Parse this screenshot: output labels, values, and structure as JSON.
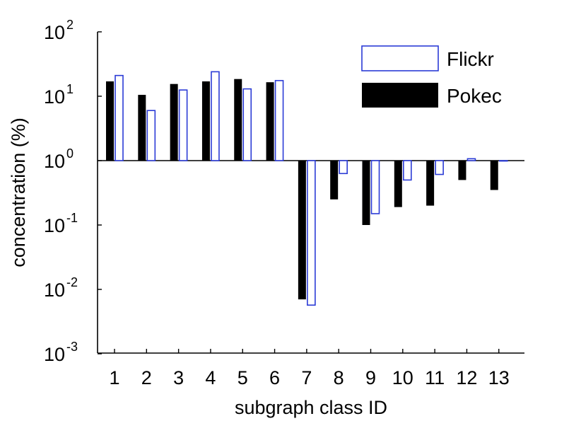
{
  "chart_data": {
    "type": "bar",
    "xlabel": "subgraph class ID",
    "ylabel": "concentration (%)",
    "y_scale": "log",
    "ylim": [
      0.001,
      100
    ],
    "baseline": 1,
    "grid": false,
    "legend_position": "top-right",
    "categories": [
      "1",
      "2",
      "3",
      "4",
      "5",
      "6",
      "7",
      "8",
      "9",
      "10",
      "11",
      "12",
      "13"
    ],
    "y_ticks": [
      {
        "base": "10",
        "exp": "-3",
        "value": 0.001
      },
      {
        "base": "10",
        "exp": "-2",
        "value": 0.01
      },
      {
        "base": "10",
        "exp": "-1",
        "value": 0.1
      },
      {
        "base": "10",
        "exp": "0",
        "value": 1
      },
      {
        "base": "10",
        "exp": "1",
        "value": 10
      },
      {
        "base": "10",
        "exp": "2",
        "value": 100
      }
    ],
    "series": [
      {
        "name": "Pokec",
        "style": "filled",
        "color": "#000000",
        "values": [
          17,
          10.5,
          15.5,
          17,
          18.5,
          16.5,
          0.007,
          0.25,
          0.1,
          0.19,
          0.2,
          0.5,
          0.35
        ]
      },
      {
        "name": "Flickr",
        "style": "outline",
        "color": "#2b3bd6",
        "values": [
          21,
          6,
          12.5,
          24,
          13,
          17.5,
          0.0057,
          0.63,
          0.15,
          0.5,
          0.61,
          1.07,
          1.0
        ]
      }
    ]
  }
}
